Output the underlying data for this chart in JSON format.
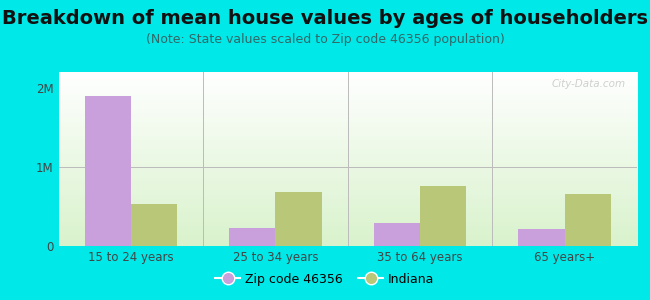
{
  "title": "Breakdown of mean house values by ages of householders",
  "subtitle": "(Note: State values scaled to Zip code 46356 population)",
  "categories": [
    "15 to 24 years",
    "25 to 34 years",
    "35 to 64 years",
    "65 years+"
  ],
  "zip_values": [
    1900000,
    230000,
    290000,
    210000
  ],
  "state_values": [
    530000,
    680000,
    760000,
    660000
  ],
  "zip_color": "#c9a0dc",
  "state_color": "#b8c878",
  "background_color": "#00e8e8",
  "ylim": [
    0,
    2200000
  ],
  "yticks": [
    0,
    1000000,
    2000000
  ],
  "ytick_labels": [
    "0",
    "1M",
    "2M"
  ],
  "legend_zip_label": "Zip code 46356",
  "legend_state_label": "Indiana",
  "bar_width": 0.32,
  "title_fontsize": 14,
  "subtitle_fontsize": 9,
  "tick_fontsize": 8.5,
  "legend_fontsize": 9,
  "watermark_text": "City-Data.com"
}
